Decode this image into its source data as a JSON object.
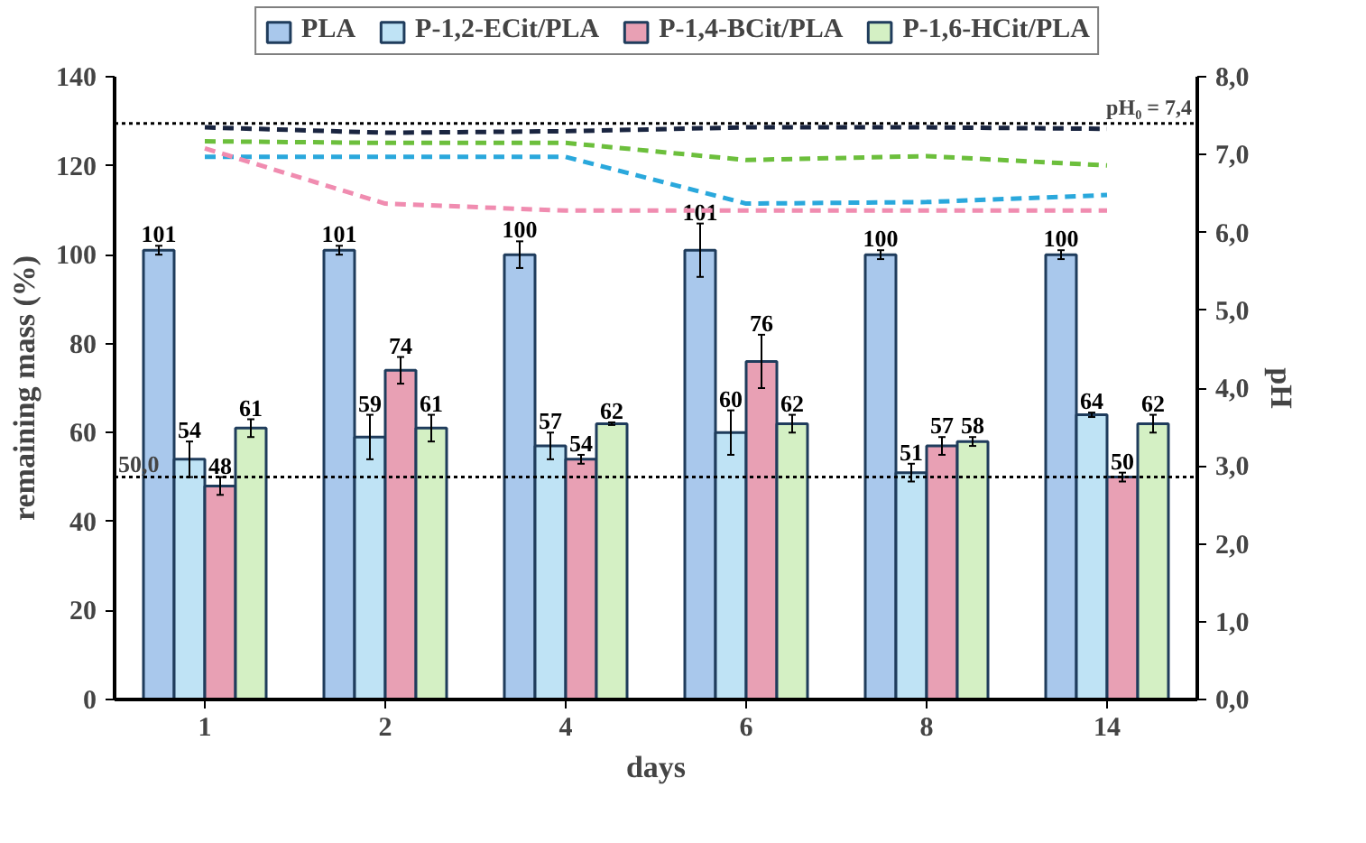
{
  "chart_data": {
    "type": "bar",
    "xlabel": "days",
    "ylabel": "remaining mass (%)",
    "y2label": "pH",
    "categories": [
      "1",
      "2",
      "4",
      "6",
      "8",
      "14"
    ],
    "series": [
      {
        "name": "PLA",
        "color": "#a9c8ec",
        "values": [
          101,
          101,
          100,
          101,
          100,
          100
        ],
        "errors": [
          1,
          1,
          3,
          6,
          1,
          1
        ],
        "value_labels": [
          "101",
          "101",
          "100",
          "101",
          "100",
          "100"
        ]
      },
      {
        "name": "P-1,2-ECit/PLA",
        "color": "#bfe3f5",
        "values": [
          54,
          59,
          57,
          60,
          51,
          64
        ],
        "errors": [
          4,
          5,
          3,
          5,
          2,
          0.5
        ],
        "value_labels": [
          "54",
          "59",
          "57",
          "60",
          "51",
          "64"
        ]
      },
      {
        "name": "P-1,4-BCit/PLA",
        "color": "#e8a0b4",
        "values": [
          48,
          74,
          54,
          76,
          57,
          50
        ],
        "errors": [
          2,
          3,
          1,
          6,
          2,
          1
        ],
        "value_labels": [
          "48",
          "74",
          "54",
          "76",
          "57",
          "50"
        ]
      },
      {
        "name": "P-1,6-HCit/PLA",
        "color": "#d4f0c4",
        "values": [
          61,
          61,
          62,
          62,
          58,
          62
        ],
        "errors": [
          2,
          3,
          0.3,
          2,
          1,
          2
        ],
        "value_labels": [
          "61",
          "61",
          "62",
          "62",
          "58",
          "62"
        ]
      },
      {
        "type": "line",
        "axis": "y2",
        "color": "#1a2540",
        "values": [
          7.35,
          7.28,
          7.3,
          7.35,
          7.35,
          7.33
        ]
      },
      {
        "type": "line",
        "axis": "y2",
        "color": "#6cbf3c",
        "values": [
          7.17,
          7.15,
          7.15,
          6.93,
          6.98,
          6.86
        ]
      },
      {
        "type": "line",
        "axis": "y2",
        "color": "#2aa8dc",
        "values": [
          6.97,
          6.97,
          6.97,
          6.37,
          6.39,
          6.48
        ]
      },
      {
        "type": "line",
        "axis": "y2",
        "color": "#f08cb0",
        "values": [
          7.08,
          6.37,
          6.28,
          6.28,
          6.28,
          6.28
        ]
      }
    ],
    "ylim": [
      0,
      140
    ],
    "yticks": [
      0,
      20,
      40,
      60,
      80,
      100,
      120,
      140
    ],
    "y2lim": [
      0,
      8
    ],
    "y2ticks": [
      {
        "value": 0,
        "label": "0,0"
      },
      {
        "value": 1,
        "label": "1,0"
      },
      {
        "value": 2,
        "label": "2,0"
      },
      {
        "value": 3,
        "label": "3,0"
      },
      {
        "value": 4,
        "label": "4,0"
      },
      {
        "value": 5,
        "label": "5,0"
      },
      {
        "value": 6,
        "label": "6,0"
      },
      {
        "value": 7,
        "label": "7,0"
      },
      {
        "value": 8,
        "label": "8,0"
      }
    ],
    "ref_lines": [
      {
        "axis": "y",
        "value": 50,
        "label": "50,0",
        "line_style": "dotted"
      },
      {
        "axis": "y2",
        "value": 7.4,
        "label": "pH₀ = 7,4",
        "line_style": "dotted"
      }
    ],
    "line_style": "dashed",
    "legend": "top",
    "grid": false
  }
}
